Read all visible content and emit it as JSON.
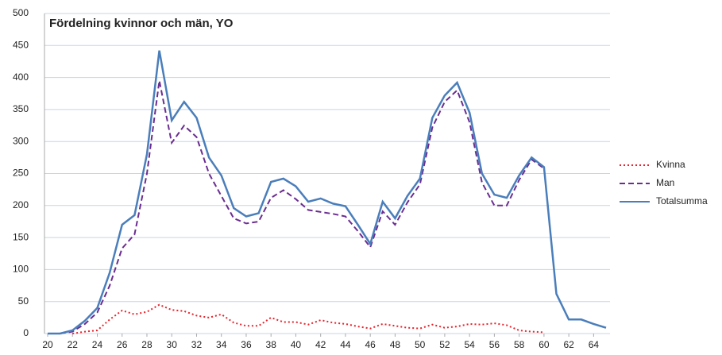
{
  "chart_data": {
    "type": "line",
    "title": "Fördelning kvinnor och män, YO",
    "x": [
      20,
      21,
      22,
      23,
      24,
      25,
      26,
      27,
      28,
      29,
      30,
      31,
      32,
      33,
      34,
      35,
      36,
      37,
      38,
      39,
      40,
      41,
      42,
      43,
      44,
      45,
      46,
      47,
      48,
      49,
      50,
      51,
      52,
      53,
      54,
      55,
      56,
      57,
      58,
      59,
      60,
      61,
      62,
      63,
      64,
      65
    ],
    "series": [
      {
        "name": "Kvinna",
        "color": "#e8222a",
        "dash": "dotted",
        "values": [
          null,
          null,
          0,
          3,
          5,
          22,
          36,
          30,
          34,
          45,
          37,
          35,
          28,
          25,
          30,
          17,
          12,
          12,
          25,
          18,
          18,
          14,
          21,
          17,
          15,
          11,
          8,
          15,
          12,
          9,
          8,
          14,
          9,
          11,
          15,
          14,
          16,
          13,
          5,
          3,
          2,
          null,
          null,
          null,
          null,
          null
        ]
      },
      {
        "name": "Man",
        "color": "#6a2d91",
        "dash": "dashed",
        "values": [
          null,
          0,
          3,
          15,
          33,
          75,
          133,
          155,
          250,
          395,
          298,
          325,
          307,
          250,
          215,
          180,
          172,
          175,
          212,
          224,
          210,
          193,
          190,
          187,
          183,
          160,
          135,
          191,
          170,
          205,
          233,
          322,
          362,
          380,
          330,
          236,
          200,
          200,
          240,
          272,
          258,
          null,
          null,
          null,
          null,
          null
        ]
      },
      {
        "name": "Totalsumma",
        "color": "#4a7ebb",
        "dash": "solid",
        "values": [
          0,
          0,
          5,
          20,
          40,
          95,
          170,
          185,
          280,
          442,
          333,
          362,
          337,
          275,
          247,
          196,
          183,
          188,
          237,
          242,
          230,
          206,
          211,
          203,
          199,
          170,
          140,
          206,
          180,
          215,
          242,
          337,
          372,
          392,
          345,
          250,
          217,
          212,
          247,
          275,
          260,
          62,
          22,
          22,
          15,
          9
        ]
      }
    ],
    "xlim": [
      20,
      65
    ],
    "xticks": [
      20,
      22,
      24,
      26,
      28,
      30,
      32,
      34,
      36,
      38,
      40,
      42,
      44,
      46,
      48,
      50,
      52,
      54,
      56,
      58,
      60,
      62,
      64
    ],
    "ylim": [
      0,
      500
    ],
    "yticks": [
      0,
      50,
      100,
      150,
      200,
      250,
      300,
      350,
      400,
      450,
      500
    ],
    "grid": true,
    "legend": "right"
  }
}
